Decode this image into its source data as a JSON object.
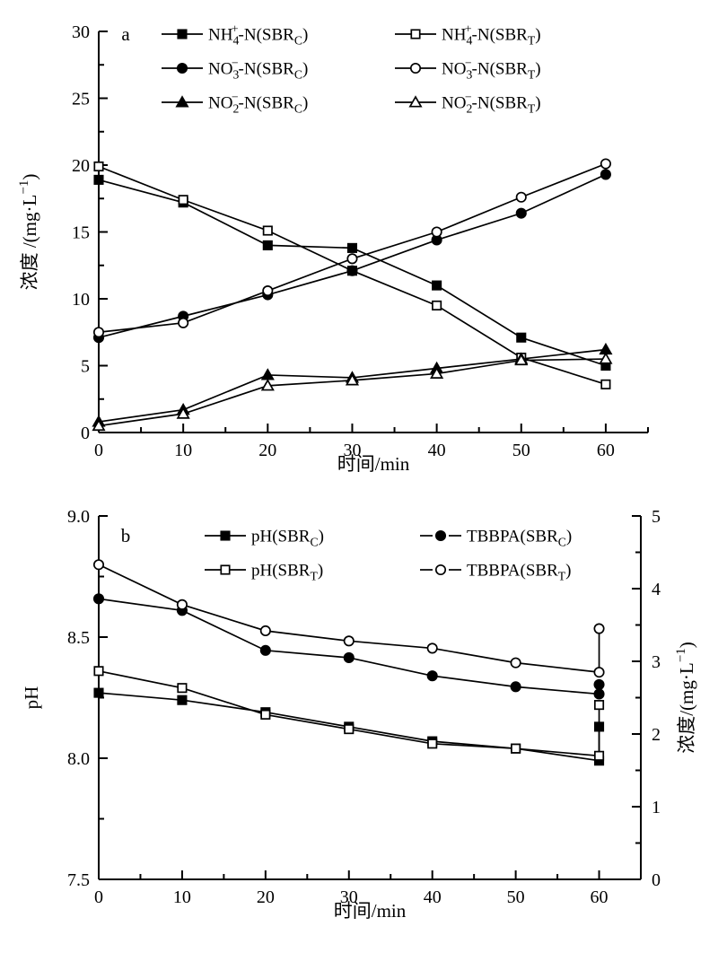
{
  "figure_title": "",
  "chart_data": [
    {
      "panel": "a",
      "panel_letter": "a",
      "type": "line",
      "x_axis": {
        "label": "时间/min",
        "label_tokens": [
          {
            "t": "时间/min"
          }
        ],
        "range": [
          0,
          65
        ],
        "ticks": [
          0,
          10,
          20,
          30,
          40,
          50,
          60
        ],
        "tick_labels": [
          "0",
          "10",
          "20",
          "30",
          "40",
          "50",
          "60"
        ],
        "minor_step": 5
      },
      "y_axis": {
        "label": "浓度/(mg·L-1)",
        "label_tokens": [
          {
            "t": "浓度 /(mg·L"
          },
          {
            "sup": "−1"
          },
          {
            "t": ")"
          }
        ],
        "range": [
          0,
          30
        ],
        "ticks": [
          0,
          5,
          10,
          15,
          20,
          25,
          30
        ],
        "tick_labels": [
          "0",
          "5",
          "10",
          "15",
          "20",
          "25",
          "30"
        ],
        "minor_step": 2.5
      },
      "x": [
        0,
        10,
        20,
        30,
        40,
        50,
        60
      ],
      "grid": false,
      "legend_position": "top-inside",
      "series": [
        {
          "name": "NH4+-N(SBRC)",
          "marker": "square",
          "fill": "filled",
          "legend_pos": [
            0,
            0
          ],
          "label_tokens": [
            {
              "t": "NH"
            },
            {
              "stack": {
                "sup": "+",
                "sub": "4"
              }
            },
            {
              "t": "-N(SBR"
            },
            {
              "sub": "C"
            },
            {
              "t": ")"
            }
          ],
          "values": [
            18.9,
            17.2,
            14.0,
            13.8,
            11.0,
            7.1,
            5.0
          ]
        },
        {
          "name": "NH4+-N(SBRT)",
          "marker": "square",
          "fill": "open",
          "legend_pos": [
            0,
            1
          ],
          "label_tokens": [
            {
              "t": "NH"
            },
            {
              "stack": {
                "sup": "+",
                "sub": "4"
              }
            },
            {
              "t": "-N(SBR"
            },
            {
              "sub": "T"
            },
            {
              "t": ")"
            }
          ],
          "values": [
            19.9,
            17.4,
            15.1,
            12.1,
            9.5,
            5.6,
            3.6
          ]
        },
        {
          "name": "NO3--N(SBRC)",
          "marker": "circle",
          "fill": "filled",
          "legend_pos": [
            1,
            0
          ],
          "label_tokens": [
            {
              "t": "NO"
            },
            {
              "stack": {
                "sup": "−",
                "sub": "3"
              }
            },
            {
              "t": "-N(SBR"
            },
            {
              "sub": "C"
            },
            {
              "t": ")"
            }
          ],
          "values": [
            7.1,
            8.7,
            10.3,
            12.1,
            14.4,
            16.4,
            19.3
          ]
        },
        {
          "name": "NO3--N(SBRT)",
          "marker": "circle",
          "fill": "open",
          "legend_pos": [
            1,
            1
          ],
          "label_tokens": [
            {
              "t": "NO"
            },
            {
              "stack": {
                "sup": "−",
                "sub": "3"
              }
            },
            {
              "t": "-N(SBR"
            },
            {
              "sub": "T"
            },
            {
              "t": ")"
            }
          ],
          "values": [
            7.5,
            8.2,
            10.6,
            13.0,
            15.0,
            17.6,
            20.1
          ]
        },
        {
          "name": "NO2--N(SBRC)",
          "marker": "triangle",
          "fill": "filled",
          "legend_pos": [
            2,
            0
          ],
          "label_tokens": [
            {
              "t": "NO"
            },
            {
              "stack": {
                "sup": "−",
                "sub": "2"
              }
            },
            {
              "t": "-N(SBR"
            },
            {
              "sub": "C"
            },
            {
              "t": ")"
            }
          ],
          "values": [
            0.8,
            1.7,
            4.3,
            4.1,
            4.8,
            5.5,
            6.2
          ]
        },
        {
          "name": "NO2--N(SBRT)",
          "marker": "triangle",
          "fill": "open",
          "legend_pos": [
            2,
            1
          ],
          "label_tokens": [
            {
              "t": "NO"
            },
            {
              "stack": {
                "sup": "−",
                "sub": "2"
              }
            },
            {
              "t": "-N(SBR"
            },
            {
              "sub": "T"
            },
            {
              "t": ")"
            }
          ],
          "values": [
            0.5,
            1.4,
            3.5,
            3.9,
            4.4,
            5.4,
            5.5
          ]
        }
      ]
    },
    {
      "panel": "b",
      "panel_letter": "b",
      "type": "line",
      "x_axis": {
        "label": "时间/min",
        "label_tokens": [
          {
            "t": "时间/min"
          }
        ],
        "range": [
          0,
          65
        ],
        "ticks": [
          0,
          10,
          20,
          30,
          40,
          50,
          60
        ],
        "tick_labels": [
          "0",
          "10",
          "20",
          "30",
          "40",
          "50",
          "60"
        ],
        "minor_step": 5
      },
      "y_axis_left": {
        "label": "pH",
        "label_tokens": [
          {
            "t": "pH"
          }
        ],
        "range": [
          7.5,
          9.0
        ],
        "ticks": [
          7.5,
          8.0,
          8.5,
          9.0
        ],
        "tick_labels": [
          "7.5",
          "8.0",
          "8.5",
          "9.0"
        ],
        "minor_step": 0.25
      },
      "y_axis_right": {
        "label": "浓度/(mg·L-1)",
        "label_tokens": [
          {
            "t": "浓度/(mg·L"
          },
          {
            "sup": "−1"
          },
          {
            "t": ")"
          }
        ],
        "range": [
          0,
          5
        ],
        "ticks": [
          0,
          1,
          2,
          3,
          4,
          5
        ],
        "tick_labels": [
          "0",
          "1",
          "2",
          "3",
          "4",
          "5"
        ],
        "minor_step": 0.5
      },
      "x": [
        0,
        10,
        20,
        30,
        40,
        50,
        60
      ],
      "grid": false,
      "legend_position": "top-inside",
      "series": [
        {
          "name": "pH(SBRC)",
          "axis": "left",
          "marker": "square",
          "fill": "filled",
          "legend_pos": [
            0,
            0
          ],
          "legend_line": "solid",
          "label_tokens": [
            {
              "t": "pH(SBR"
            },
            {
              "sub": "C"
            },
            {
              "t": ")"
            }
          ],
          "values": [
            8.27,
            8.24,
            8.19,
            8.13,
            8.07,
            8.04,
            7.99
          ],
          "extra_end_value": 8.13
        },
        {
          "name": "pH(SBRT)",
          "axis": "left",
          "marker": "square",
          "fill": "open",
          "legend_pos": [
            1,
            0
          ],
          "legend_line": "solid",
          "label_tokens": [
            {
              "t": "pH(SBR"
            },
            {
              "sub": "T"
            },
            {
              "t": ")"
            }
          ],
          "values": [
            8.36,
            8.29,
            8.18,
            8.12,
            8.06,
            8.04,
            8.01
          ],
          "extra_end_value": 8.22
        },
        {
          "name": "TBBPA(SBRC)",
          "axis": "right",
          "marker": "circle",
          "fill": "filled",
          "legend_pos": [
            0,
            1
          ],
          "legend_line": "broken",
          "label_tokens": [
            {
              "t": "TBBPA(SBR"
            },
            {
              "sub": "C"
            },
            {
              "t": ")"
            }
          ],
          "values": [
            3.86,
            3.7,
            3.15,
            3.05,
            2.8,
            2.65,
            2.55
          ],
          "extra_end_value": 2.68
        },
        {
          "name": "TBBPA(SBRT)",
          "axis": "right",
          "marker": "circle",
          "fill": "open",
          "legend_pos": [
            1,
            1
          ],
          "legend_line": "broken",
          "label_tokens": [
            {
              "t": "TBBPA(SBR"
            },
            {
              "sub": "T"
            },
            {
              "t": ")"
            }
          ],
          "values": [
            4.33,
            3.78,
            3.42,
            3.28,
            3.18,
            2.98,
            2.85
          ],
          "extra_end_value": 3.45
        }
      ]
    }
  ],
  "colors": {
    "foreground": "#000000",
    "background": "#ffffff"
  }
}
